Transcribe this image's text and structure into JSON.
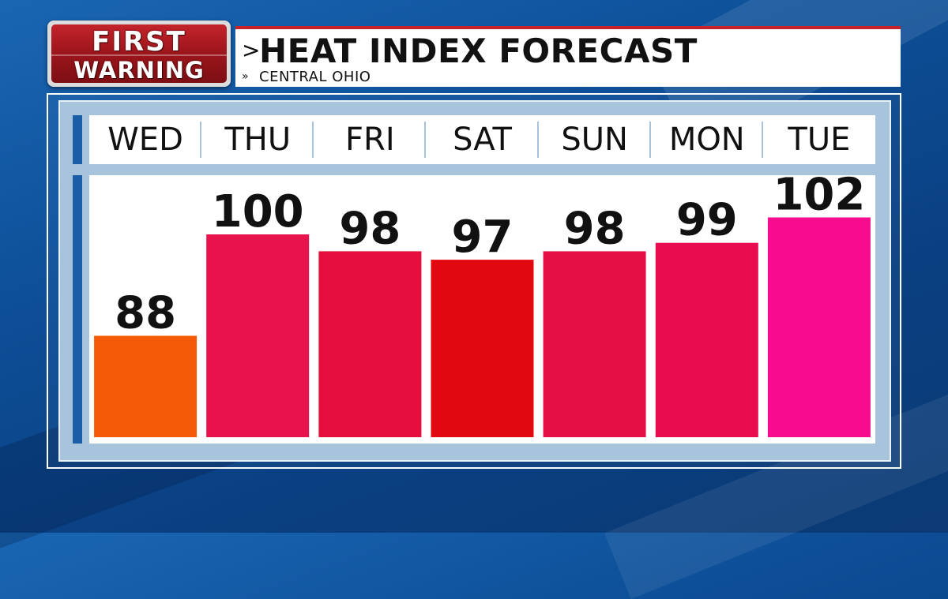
{
  "logo": {
    "line1": "FIRST",
    "line2": "WARNING"
  },
  "header": {
    "title_chevron": ">",
    "title": "HEAT INDEX FORECAST",
    "subtitle_chevron": "»",
    "subtitle": "CENTRAL OHIO"
  },
  "colors": {
    "logo_red": "#c4232b",
    "background_blue": "#0d4f98",
    "panel_frame": "#a8c4dc",
    "accent_blue": "#1a5fa6"
  },
  "chart_data": {
    "type": "bar",
    "title": "HEAT INDEX FORECAST",
    "subtitle": "CENTRAL OHIO",
    "categories": [
      "WED",
      "THU",
      "FRI",
      "SAT",
      "SUN",
      "MON",
      "TUE"
    ],
    "values": [
      88,
      100,
      98,
      97,
      98,
      99,
      102
    ],
    "bar_colors": [
      "#f45a08",
      "#e8124d",
      "#e50e3c",
      "#e2080f",
      "#e60f45",
      "#e90d4f",
      "#f70c8f"
    ],
    "data_labels": [
      "88",
      "100",
      "98",
      "97",
      "98",
      "99",
      "102"
    ],
    "xlabel": "",
    "ylabel": "",
    "ylim": [
      76,
      107
    ],
    "grid": false,
    "legend": "none"
  }
}
